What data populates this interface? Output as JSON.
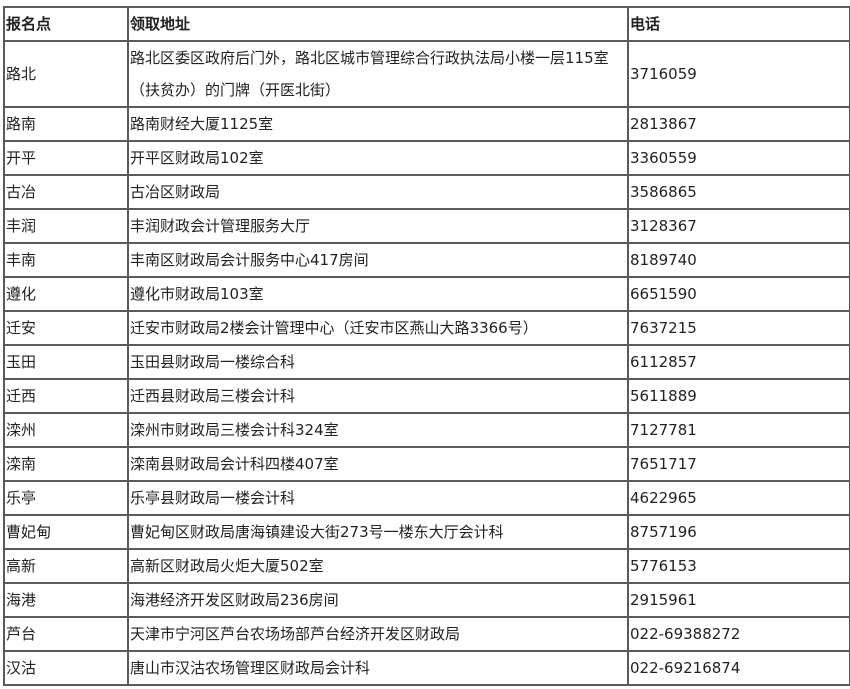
{
  "table": {
    "headers": [
      "报名点",
      "领取地址",
      "电话"
    ],
    "rows": [
      [
        "路北",
        "路北区委区政府后门外，路北区城市管理综合行政执法局小楼一层115室（扶贫办）的门牌（开医北街）",
        "3716059"
      ],
      [
        "路南",
        "路南财经大厦1125室",
        "2813867"
      ],
      [
        "开平",
        "开平区财政局102室",
        "3360559"
      ],
      [
        "古冶",
        "古冶区财政局",
        "3586865"
      ],
      [
        "丰润",
        "丰润财政会计管理服务大厅",
        "3128367"
      ],
      [
        "丰南",
        "丰南区财政局会计服务中心417房间",
        "8189740"
      ],
      [
        "遵化",
        "遵化市财政局103室",
        "6651590"
      ],
      [
        "迁安",
        "迁安市财政局2楼会计管理中心（迁安市区燕山大路3366号）",
        "7637215"
      ],
      [
        "玉田",
        "玉田县财政局一楼综合科",
        "6112857"
      ],
      [
        "迁西",
        "迁西县财政局三楼会计科",
        "5611889"
      ],
      [
        "滦州",
        "滦州市财政局三楼会计科324室",
        "7127781"
      ],
      [
        "滦南",
        "滦南县财政局会计科四楼407室",
        "7651717"
      ],
      [
        "乐亭",
        "乐亭县财政局一楼会计科",
        "4622965"
      ],
      [
        "曹妃甸",
        "曹妃甸区财政局唐海镇建设大街273号一楼东大厅会计科",
        "8757196"
      ],
      [
        "高新",
        "高新区财政局火炬大厦502室",
        "5776153"
      ],
      [
        "海港",
        "海港经济开发区财政局236房间",
        "2915961"
      ],
      [
        "芦台",
        "天津市宁河区芦台农场场部芦台经济开发区财政局",
        "022-69388272"
      ],
      [
        "汉沽",
        "唐山市汉沽农场管理区财政局会计科",
        "022-69216874"
      ]
    ]
  }
}
